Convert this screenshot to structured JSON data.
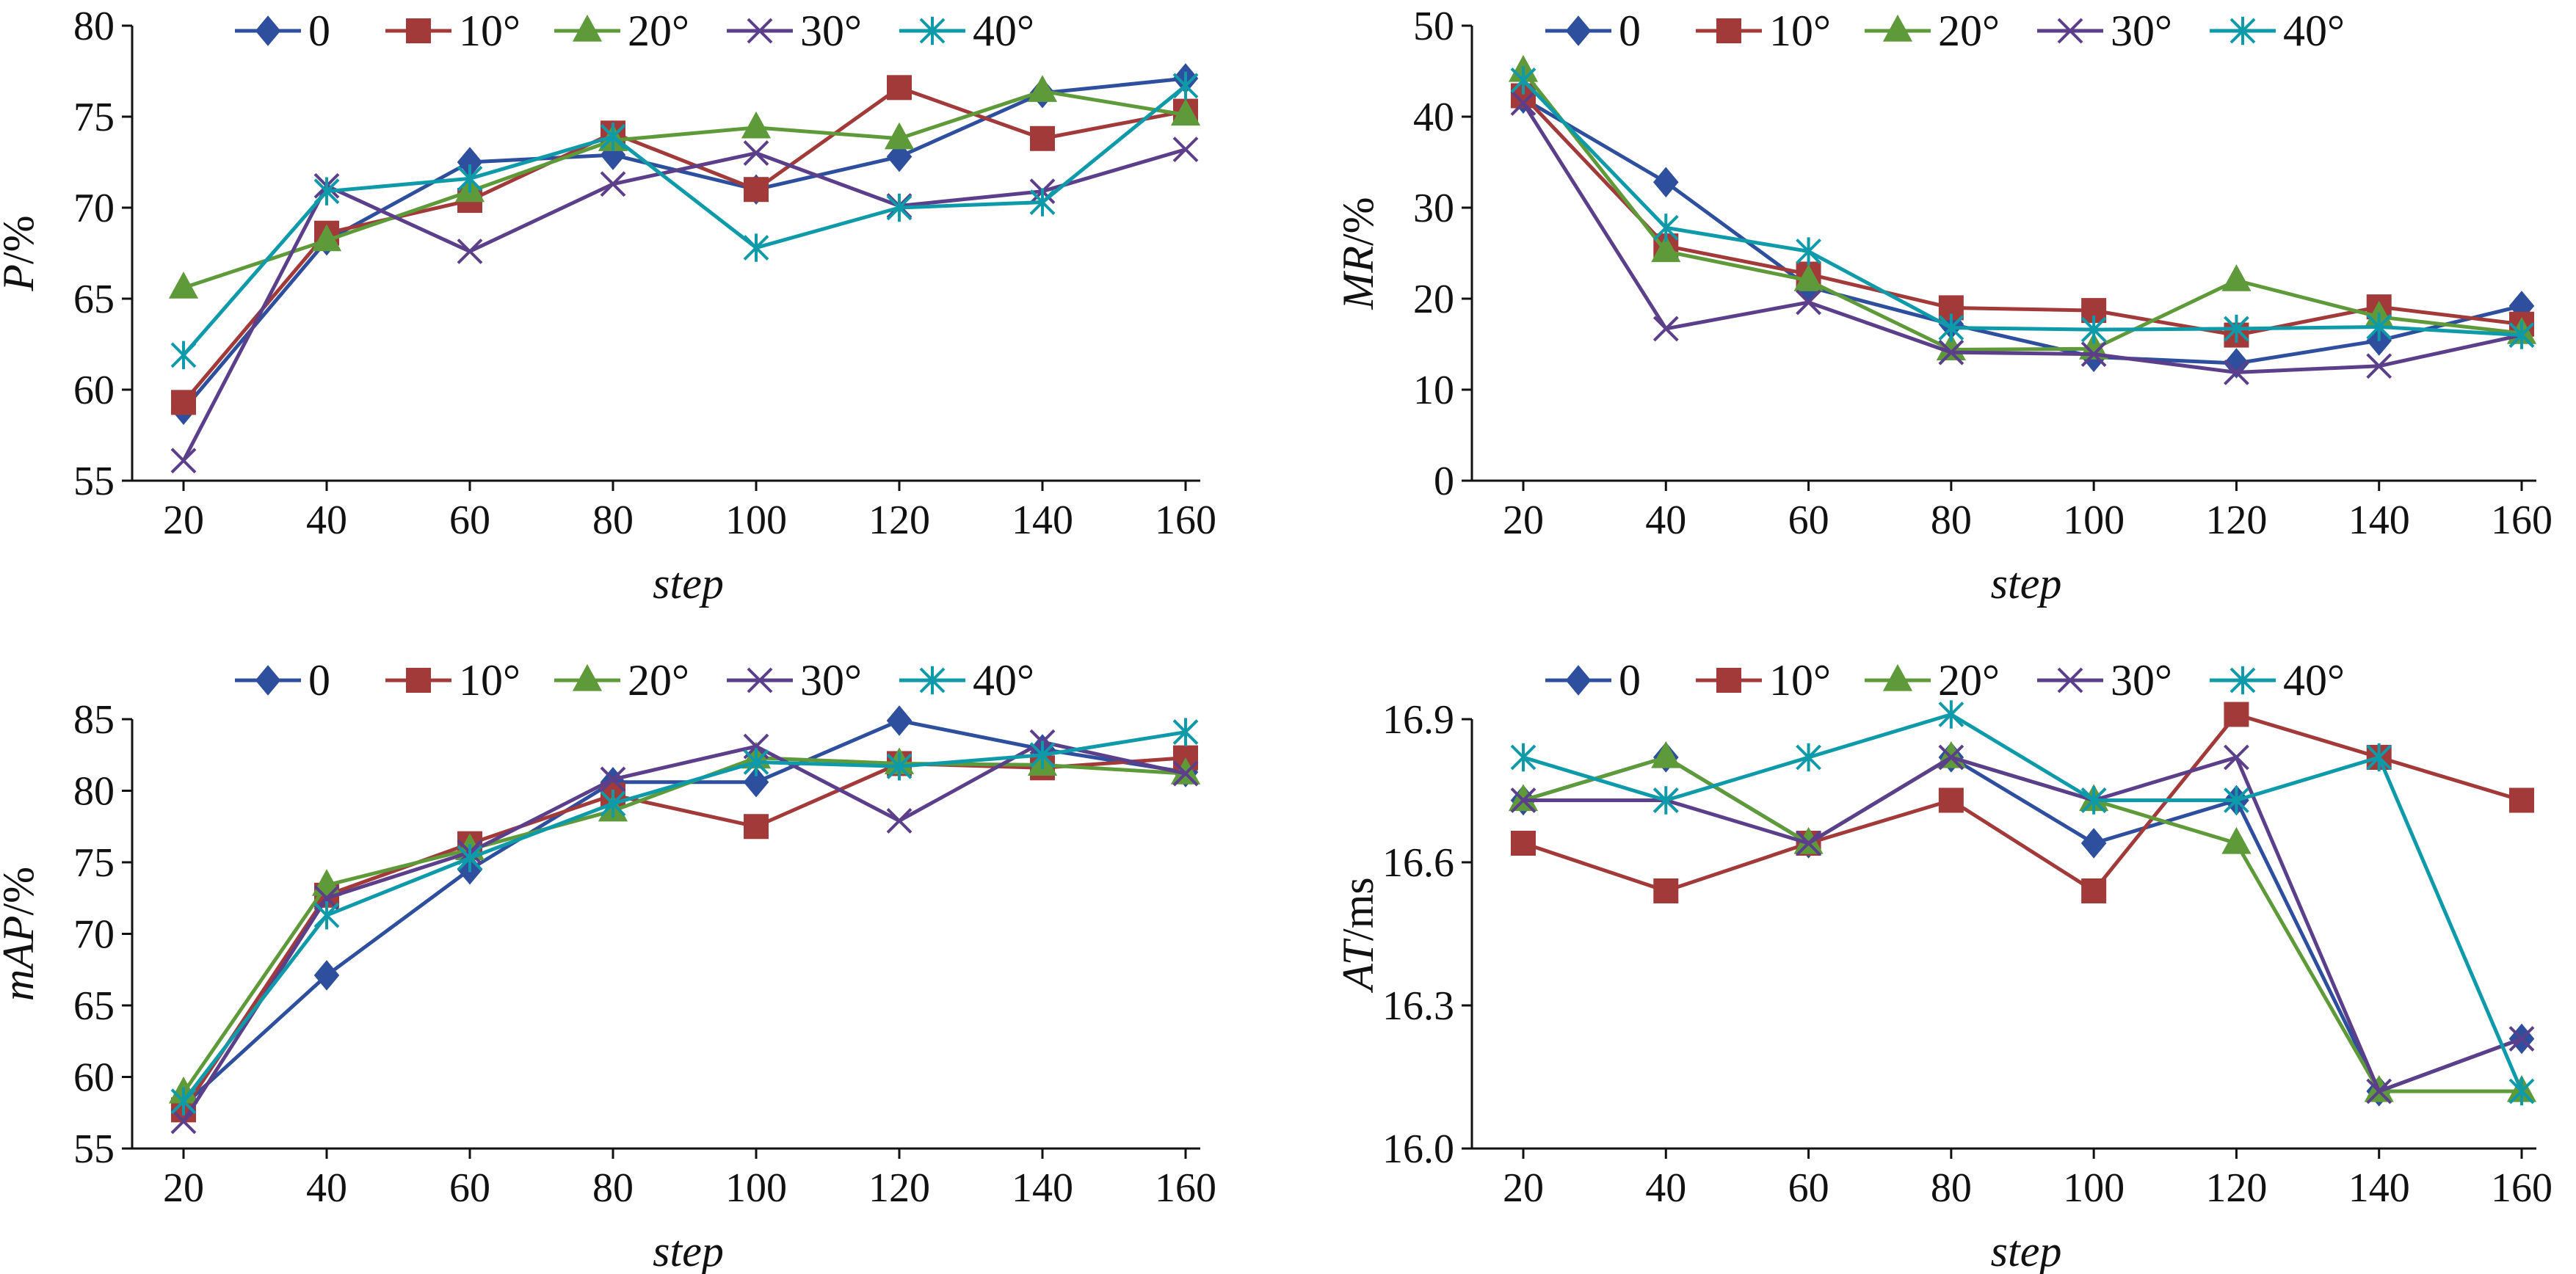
{
  "colors": {
    "0": "#2e4f9e",
    "10°": "#a23a3a",
    "20°": "#5f9a3a",
    "30°": "#5b3f8a",
    "40°": "#0f9aaa"
  },
  "markers": {
    "0": "diamond",
    "10°": "square",
    "20°": "triangle",
    "30°": "x-cross",
    "40°": "star"
  },
  "chart_data": [
    {
      "type": "line",
      "xlabel": "step",
      "ylabel_italic": "P",
      "ylabel_suffix": "/%",
      "x": [
        20,
        40,
        60,
        80,
        100,
        120,
        140,
        160
      ],
      "ylim": [
        55,
        80
      ],
      "yticks": [
        55,
        60,
        65,
        70,
        75,
        80
      ],
      "yticklabels": [
        "55",
        "60",
        "65",
        "70",
        "75",
        "80"
      ],
      "legend_placement": "top",
      "series": [
        {
          "name": "0",
          "values": [
            58.9,
            68.2,
            72.5,
            72.9,
            71.0,
            72.8,
            76.3,
            77.1
          ]
        },
        {
          "name": "10°",
          "values": [
            59.3,
            68.6,
            70.4,
            74.1,
            71.0,
            76.6,
            73.8,
            75.3
          ]
        },
        {
          "name": "20°",
          "values": [
            65.6,
            68.2,
            70.9,
            73.7,
            74.4,
            73.8,
            76.4,
            75.1
          ]
        },
        {
          "name": "30°",
          "values": [
            56.1,
            71.2,
            67.6,
            71.3,
            73.0,
            70.1,
            70.9,
            73.2
          ]
        },
        {
          "name": "40°",
          "values": [
            61.9,
            70.9,
            71.6,
            73.9,
            67.8,
            70.0,
            70.3,
            76.7
          ]
        }
      ]
    },
    {
      "type": "line",
      "xlabel": "step",
      "ylabel_italic": "MR",
      "ylabel_suffix": "/%",
      "x": [
        20,
        40,
        60,
        80,
        100,
        120,
        140,
        160
      ],
      "ylim": [
        0,
        50
      ],
      "yticks": [
        0,
        10,
        20,
        30,
        40,
        50
      ],
      "yticklabels": [
        "0",
        "10",
        "20",
        "30",
        "40",
        "50"
      ],
      "legend_placement": "top",
      "series": [
        {
          "name": "0",
          "values": [
            42.0,
            32.8,
            21.3,
            17.2,
            13.6,
            12.9,
            15.4,
            19.2
          ]
        },
        {
          "name": "10°",
          "values": [
            42.3,
            25.8,
            22.7,
            19.0,
            18.7,
            16.0,
            19.1,
            17.2
          ]
        },
        {
          "name": "20°",
          "values": [
            45.0,
            25.2,
            22.0,
            14.4,
            14.5,
            22.0,
            18.0,
            16.2
          ]
        },
        {
          "name": "30°",
          "values": [
            41.5,
            16.7,
            19.6,
            14.1,
            13.9,
            11.9,
            12.6,
            16.0
          ]
        },
        {
          "name": "40°",
          "values": [
            44.0,
            27.8,
            25.2,
            16.8,
            16.6,
            16.7,
            16.9,
            16.0
          ]
        }
      ]
    },
    {
      "type": "line",
      "xlabel": "step",
      "ylabel_italic": "mAP",
      "ylabel_suffix": "/%",
      "x": [
        20,
        40,
        60,
        80,
        100,
        120,
        140,
        160
      ],
      "ylim": [
        55,
        85
      ],
      "yticks": [
        55,
        60,
        65,
        70,
        75,
        80,
        85
      ],
      "yticklabels": [
        "55",
        "60",
        "65",
        "70",
        "75",
        "80",
        "85"
      ],
      "legend_placement": "top",
      "series": [
        {
          "name": "0",
          "values": [
            58.0,
            67.1,
            74.5,
            80.6,
            80.6,
            84.9,
            82.9,
            81.3
          ]
        },
        {
          "name": "10°",
          "values": [
            57.7,
            72.7,
            76.3,
            79.7,
            77.5,
            81.9,
            81.6,
            82.3
          ]
        },
        {
          "name": "20°",
          "values": [
            58.9,
            73.4,
            75.9,
            78.6,
            82.3,
            81.9,
            81.8,
            81.2
          ]
        },
        {
          "name": "30°",
          "values": [
            56.9,
            72.5,
            75.7,
            80.8,
            83.1,
            77.9,
            83.4,
            81.2
          ]
        },
        {
          "name": "40°",
          "values": [
            58.3,
            71.3,
            75.3,
            79.1,
            82.0,
            81.7,
            82.5,
            84.1
          ]
        }
      ]
    },
    {
      "type": "line",
      "xlabel": "step",
      "ylabel_italic": "AT",
      "ylabel_suffix": "/ms",
      "x": [
        20,
        40,
        60,
        80,
        100,
        120,
        140,
        160
      ],
      "ylim": [
        16.0,
        16.9
      ],
      "yticks": [
        16.0,
        16.3,
        16.6,
        16.9
      ],
      "yticklabels": [
        "16.0",
        "16.3",
        "16.6",
        "16.9"
      ],
      "legend_placement": "top",
      "series": [
        {
          "name": "0",
          "values": [
            16.73,
            16.82,
            16.64,
            16.82,
            16.64,
            16.73,
            16.12,
            16.23
          ]
        },
        {
          "name": "10°",
          "values": [
            16.64,
            16.54,
            16.64,
            16.73,
            16.54,
            16.91,
            16.82,
            16.73
          ]
        },
        {
          "name": "20°",
          "values": [
            16.73,
            16.82,
            16.64,
            16.82,
            16.73,
            16.64,
            16.12,
            16.12
          ]
        },
        {
          "name": "30°",
          "values": [
            16.73,
            16.73,
            16.64,
            16.82,
            16.73,
            16.82,
            16.12,
            16.23
          ]
        },
        {
          "name": "40°",
          "values": [
            16.82,
            16.73,
            16.82,
            16.91,
            16.73,
            16.73,
            16.82,
            16.12
          ]
        }
      ]
    }
  ]
}
